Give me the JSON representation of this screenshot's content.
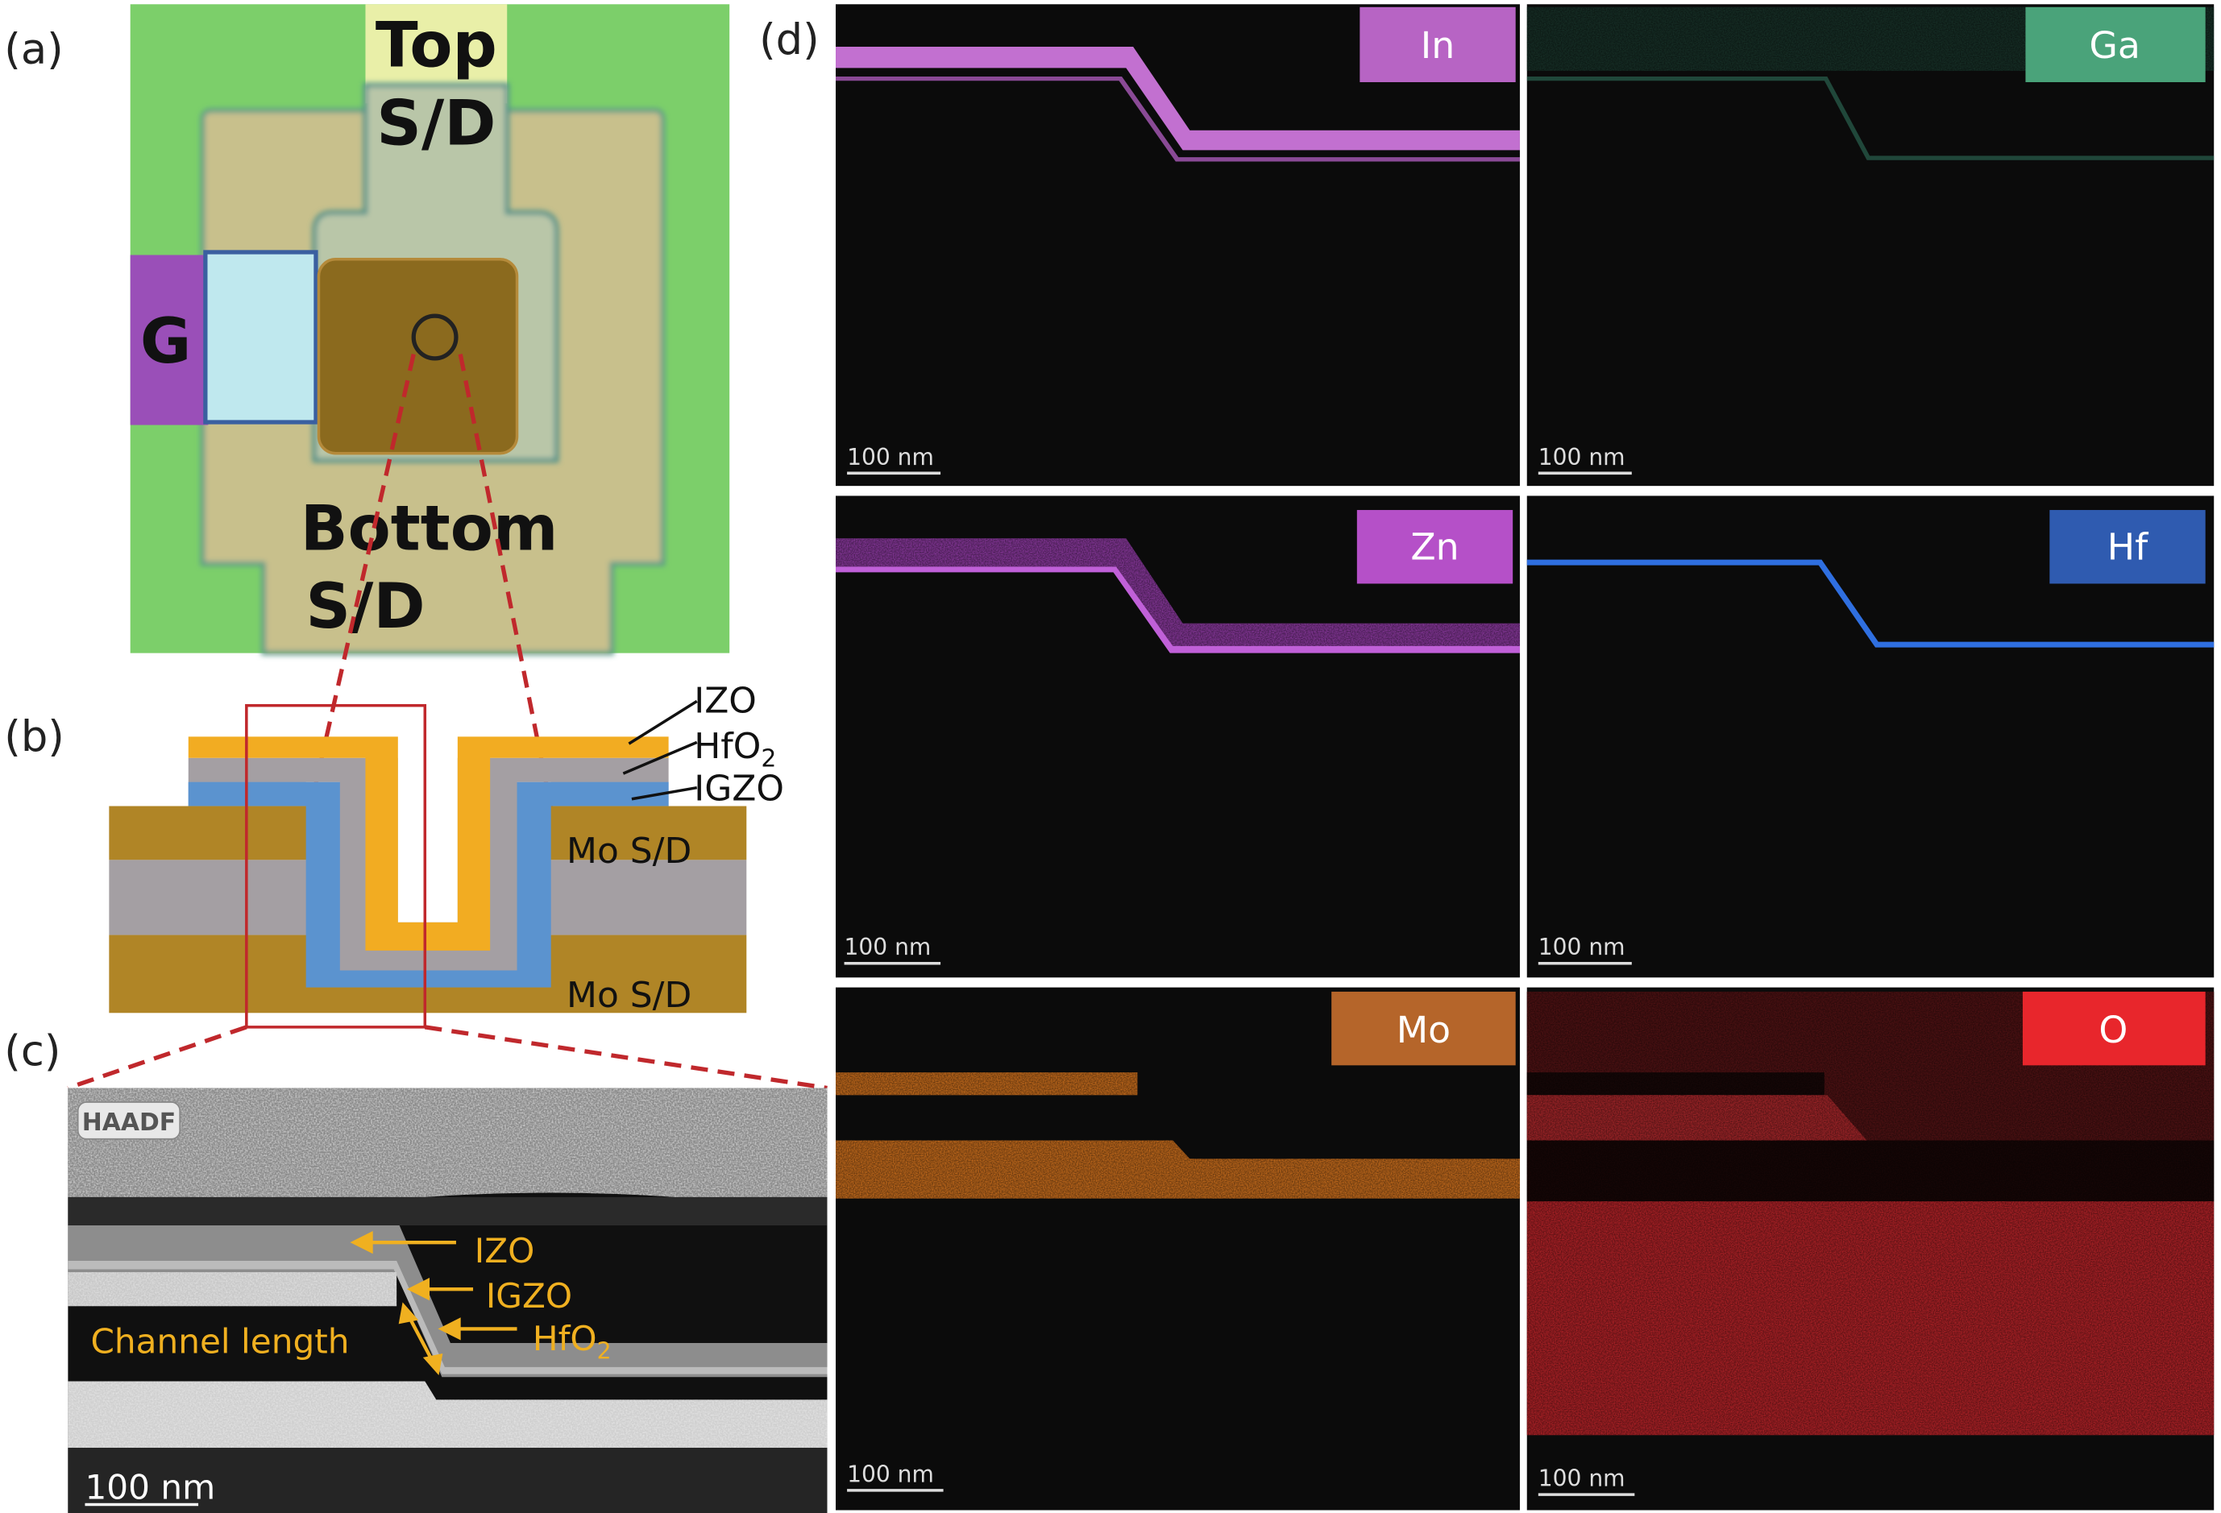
{
  "panel_labels": {
    "a": "(a)",
    "b": "(b)",
    "c": "(c)",
    "d": "(d)"
  },
  "panel_a": {
    "top_label_1": "Top",
    "top_label_2": "S/D",
    "gate_label": "G",
    "bottom_label_1": "Bottom",
    "bottom_label_2": "S/D"
  },
  "panel_b": {
    "layer_labels": {
      "izo": "IZO",
      "hfo2_main": "HfO",
      "hfo2_sub": "2",
      "igzo": "IGZO"
    },
    "mo_top": "Mo S/D",
    "mo_bottom": "Mo S/D",
    "colors": {
      "izo": "#f2ac22",
      "hfo2": "#a49fa3",
      "igzo": "#5b93cf",
      "mo": "#b08526"
    }
  },
  "panel_c": {
    "badge": "HAADF",
    "izo": "IZO",
    "igzo": "IGZO",
    "hfo2_main": "HfO",
    "hfo2_sub": "2",
    "channel_length": "Channel length",
    "scale_bar": "100 nm"
  },
  "panel_d": {
    "maps": [
      {
        "element": "In",
        "color": "#b764c4",
        "scale_bar": "100 nm"
      },
      {
        "element": "Ga",
        "color": "#4aa37a",
        "scale_bar": "100 nm"
      },
      {
        "element": "Zn",
        "color": "#b550c8",
        "scale_bar": "100 nm"
      },
      {
        "element": "Hf",
        "color": "#2f5bb0",
        "scale_bar": "100 nm"
      },
      {
        "element": "Mo",
        "color": "#b5652a",
        "scale_bar": "100 nm"
      },
      {
        "element": "O",
        "color": "#e8262c",
        "scale_bar": "100 nm"
      }
    ]
  }
}
